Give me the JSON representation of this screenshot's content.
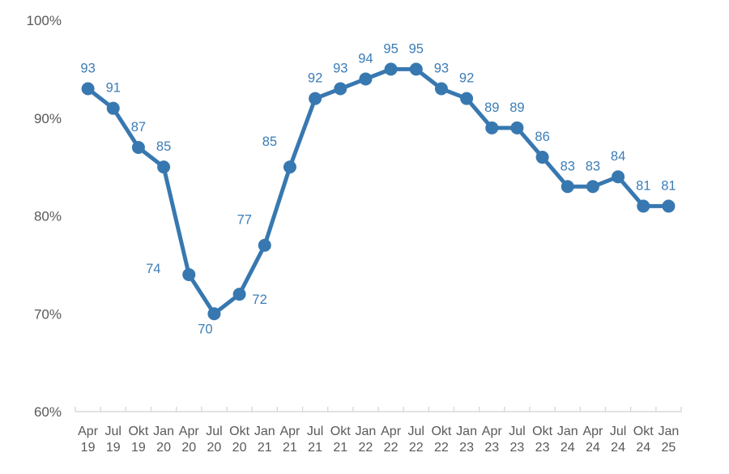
{
  "page": {
    "background": "#ffffff"
  },
  "chart_data": {
    "type": "line",
    "title": "",
    "xlabel": "",
    "ylabel": "",
    "categories": [
      "Apr 19",
      "Jul 19",
      "Okt 19",
      "Jan 20",
      "Apr 20",
      "Jul 20",
      "Okt 20",
      "Jan 21",
      "Apr 21",
      "Jul 21",
      "Okt 21",
      "Jan 22",
      "Apr 22",
      "Jul 22",
      "Okt 22",
      "Jan 23",
      "Apr 23",
      "Jul 23",
      "Okt 23",
      "Jan 24",
      "Apr 24",
      "Jul 24",
      "Okt 24",
      "Jan 25"
    ],
    "values": [
      93,
      91,
      87,
      85,
      74,
      70,
      72,
      77,
      85,
      92,
      93,
      94,
      95,
      95,
      93,
      92,
      89,
      89,
      86,
      83,
      83,
      84,
      81,
      81
    ],
    "data_labels_shown": true,
    "data_label_positions": [
      "above",
      "above",
      "above",
      "above",
      "left",
      "below",
      "right",
      "above-left",
      "above-left",
      "above",
      "above",
      "above",
      "above",
      "above",
      "above",
      "above",
      "above",
      "above",
      "above",
      "above",
      "above",
      "above",
      "above",
      "above"
    ],
    "y_axis": {
      "min": 60,
      "max": 100,
      "step": 10,
      "tick_labels": [
        "100%",
        "90%",
        "80%",
        "70%",
        "60%"
      ],
      "format": "percent"
    },
    "x_axis": {
      "tick_marks": true,
      "label_lines": 2
    },
    "ylim": [
      60,
      100
    ],
    "grid": false,
    "legend": false,
    "marker": "circle",
    "colors": {
      "series": "#3878b0",
      "data_label": "#3c7db6",
      "axis_text": "#595959",
      "axis_line": "#d9d9d9"
    }
  }
}
